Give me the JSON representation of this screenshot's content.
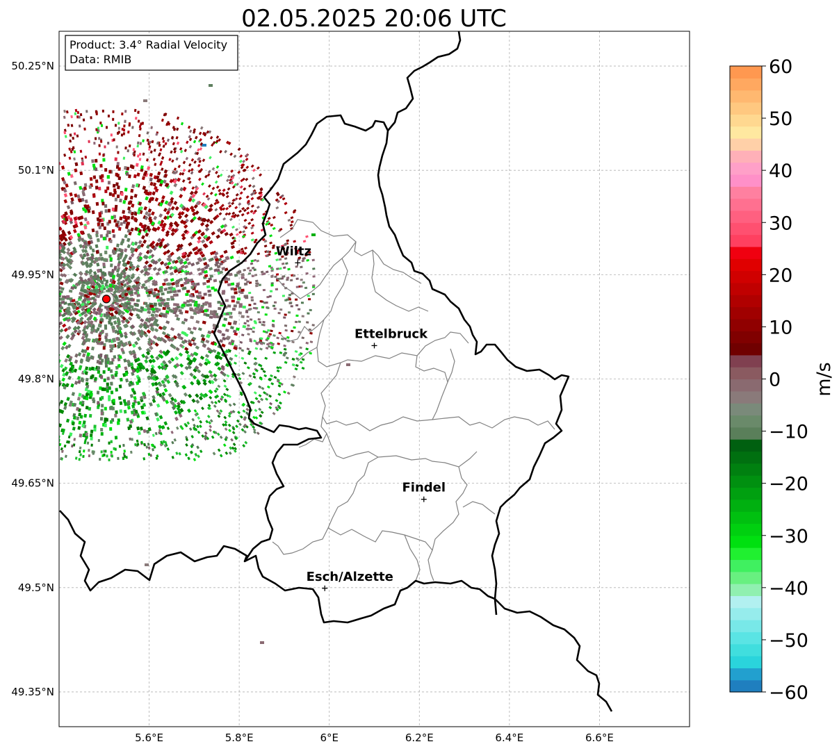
{
  "title": "02.05.2025 20:06 UTC",
  "info_box": {
    "product": "Product: 3.4° Radial Velocity",
    "data_source": "Data: RMIB"
  },
  "map": {
    "lon_range": [
      5.4,
      6.8
    ],
    "lat_range": [
      49.3,
      50.3
    ],
    "x_ticks": [
      {
        "value": 5.6,
        "label": "5.6°E"
      },
      {
        "value": 5.8,
        "label": "5.8°E"
      },
      {
        "value": 6.0,
        "label": "6°E"
      },
      {
        "value": 6.2,
        "label": "6.2°E"
      },
      {
        "value": 6.4,
        "label": "6.4°E"
      },
      {
        "value": 6.6,
        "label": "6.6°E"
      }
    ],
    "y_ticks": [
      {
        "value": 50.25,
        "label": "50.25°N"
      },
      {
        "value": 50.1,
        "label": "50.1°N"
      },
      {
        "value": 49.95,
        "label": "49.95°N"
      },
      {
        "value": 49.8,
        "label": "49.8°N"
      },
      {
        "value": 49.65,
        "label": "49.65°N"
      },
      {
        "value": 49.5,
        "label": "49.5°N"
      },
      {
        "value": 49.35,
        "label": "49.35°N"
      }
    ],
    "grid": true,
    "radar_site": {
      "lon": 5.505,
      "lat": 49.915,
      "color": "#ff0000"
    },
    "cities": [
      {
        "name": "Wiltz",
        "lon": 5.93,
        "lat": 49.967
      },
      {
        "name": "Ettelbruck",
        "lon": 6.1,
        "lat": 49.848
      },
      {
        "name": "Findel",
        "lon": 6.21,
        "lat": 49.627
      },
      {
        "name": "Esch/Alzette",
        "lon": 5.99,
        "lat": 49.499
      }
    ]
  },
  "colorbar": {
    "label": "m/s",
    "min": -60,
    "max": 60,
    "ticks": [
      {
        "value": 60,
        "label": "60"
      },
      {
        "value": 50,
        "label": "50"
      },
      {
        "value": 40,
        "label": "40"
      },
      {
        "value": 30,
        "label": "30"
      },
      {
        "value": 20,
        "label": "20"
      },
      {
        "value": 10,
        "label": "10"
      },
      {
        "value": 0,
        "label": "0"
      },
      {
        "value": -10,
        "label": "−10"
      },
      {
        "value": -20,
        "label": "−20"
      },
      {
        "value": -30,
        "label": "−30"
      },
      {
        "value": -40,
        "label": "−40"
      },
      {
        "value": -50,
        "label": "−50"
      },
      {
        "value": -60,
        "label": "−60"
      }
    ],
    "colors": [
      "#1f7fbf",
      "#22a0cf",
      "#2ad4dc",
      "#40dede",
      "#5ae4e4",
      "#78e8e8",
      "#96ecec",
      "#b2f0f0",
      "#90f0b0",
      "#68f080",
      "#40f060",
      "#20f030",
      "#00e010",
      "#00d010",
      "#00c010",
      "#00b010",
      "#00a010",
      "#009010",
      "#008010",
      "#007010",
      "#006010",
      "#5a7f5a",
      "#6a8a6a",
      "#7a8a7a",
      "#8a7a7a",
      "#8a6a70",
      "#8a5a60",
      "#804050",
      "#700000",
      "#800000",
      "#900000",
      "#a00000",
      "#b00000",
      "#c00000",
      "#d00000",
      "#e00000",
      "#f00010",
      "#ff4060",
      "#ff5070",
      "#ff6080",
      "#ff7090",
      "#ff80a0",
      "#ff90c8",
      "#ffa0c8",
      "#ffb0b8",
      "#ffd0a8",
      "#ffe8a0",
      "#ffd890",
      "#ffc880",
      "#ffb870",
      "#ffa860",
      "#ff9850"
    ]
  }
}
